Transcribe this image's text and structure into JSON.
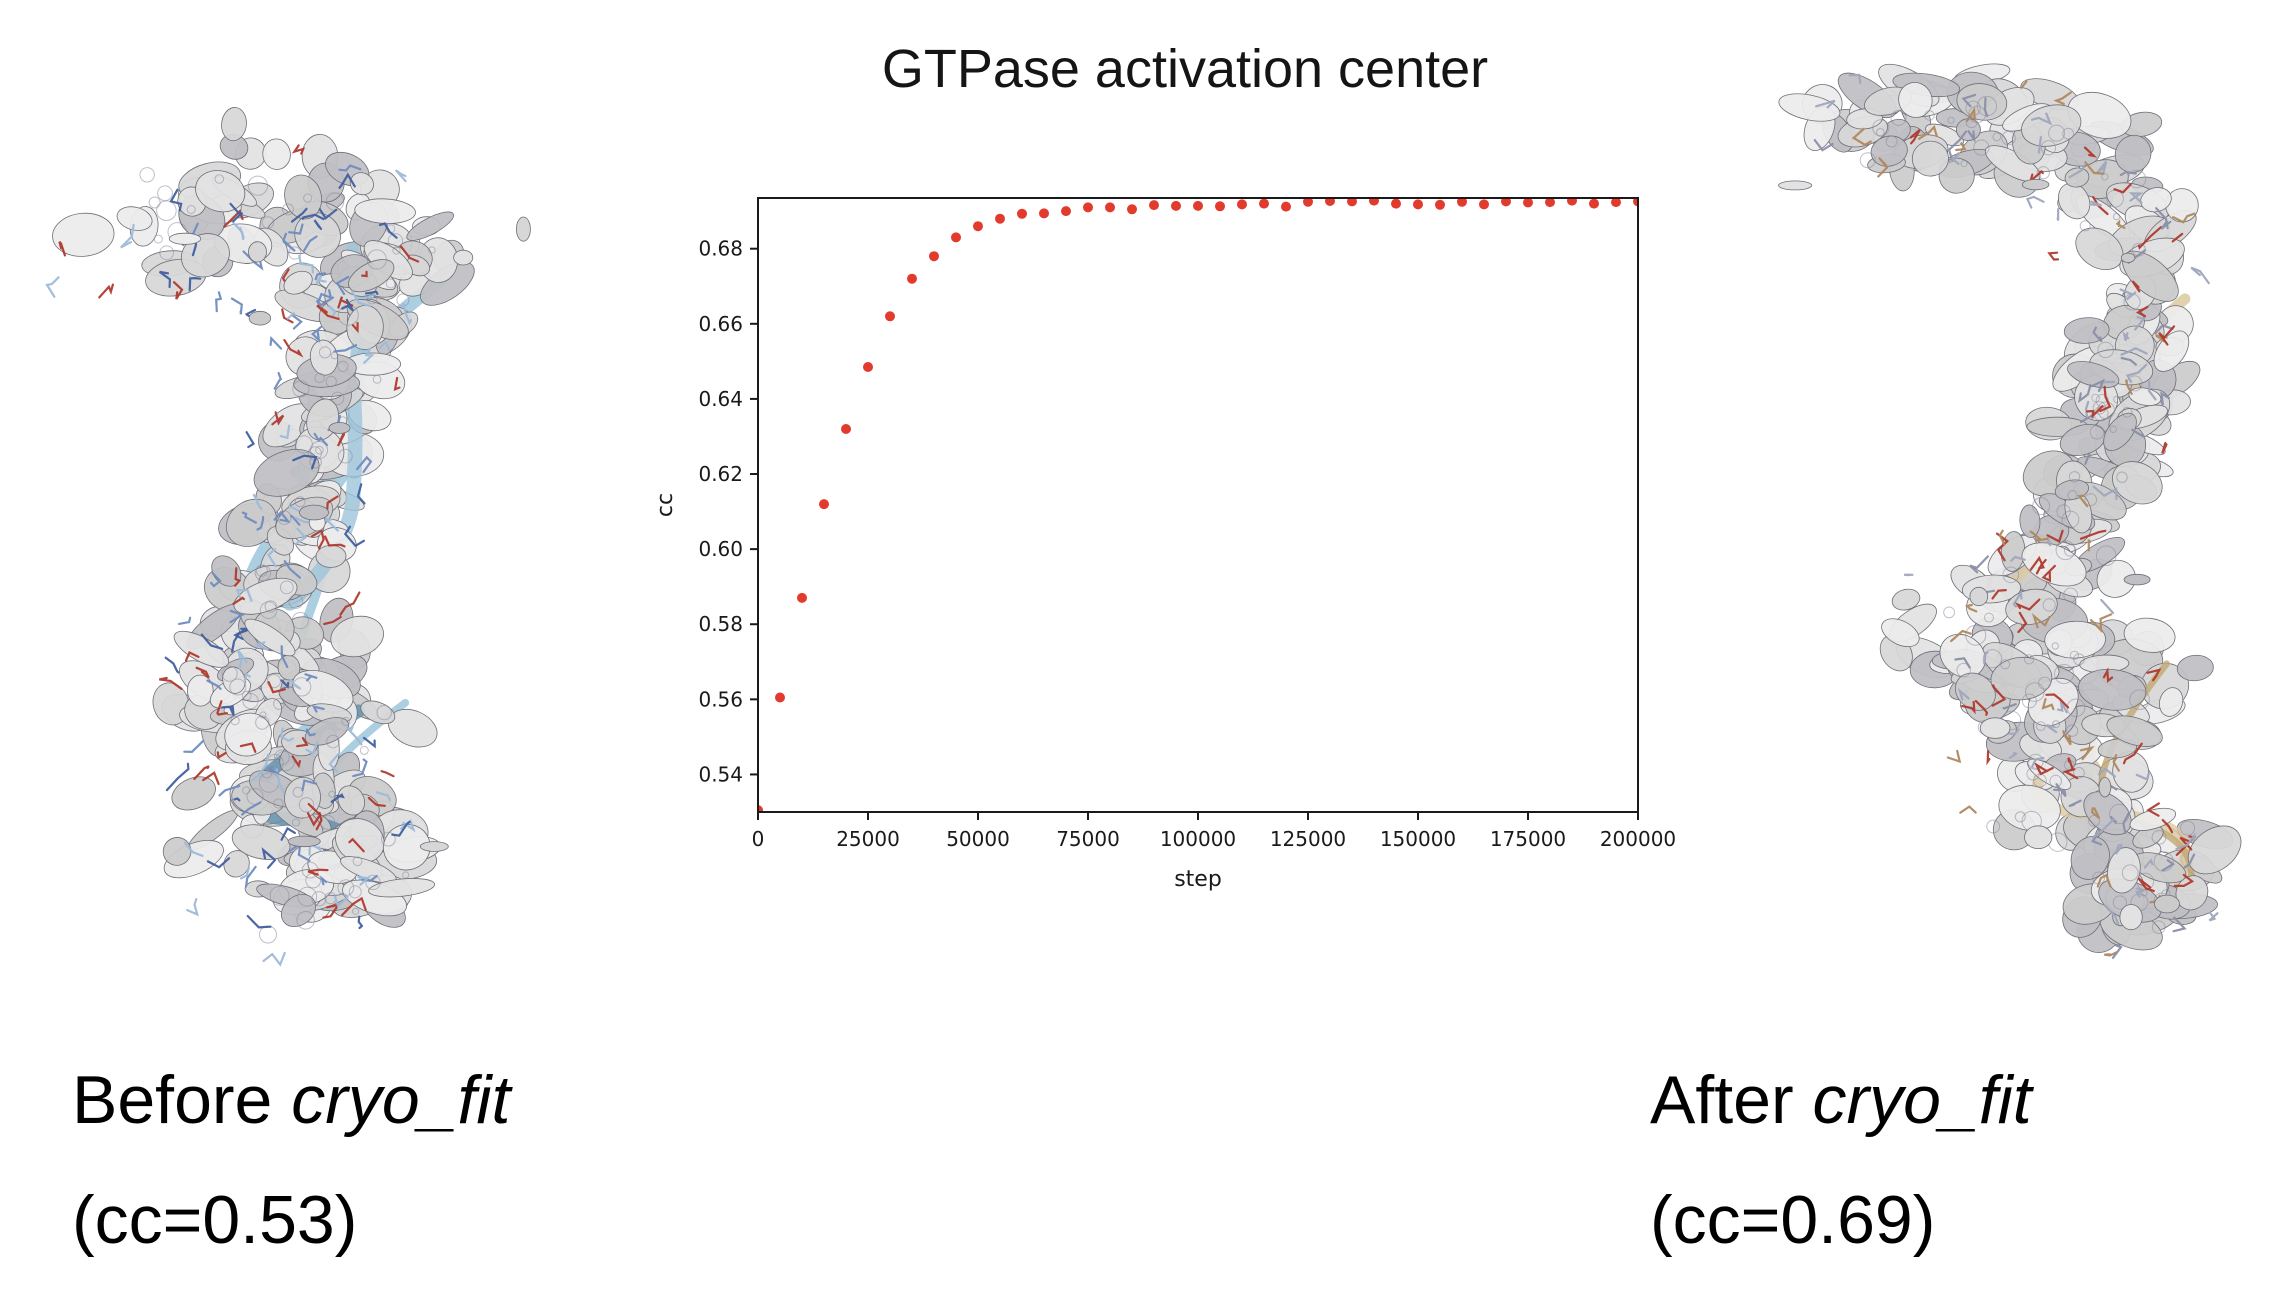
{
  "slide": {
    "background_color": "#ffffff",
    "title_color": "#151515"
  },
  "chart_data": {
    "type": "scatter",
    "title": "GTPase activation center",
    "xlabel": "step",
    "ylabel": "cc",
    "xlim": [
      0,
      200000
    ],
    "ylim": [
      0.53,
      0.6935
    ],
    "x_ticks": [
      0,
      25000,
      50000,
      75000,
      100000,
      125000,
      150000,
      175000,
      200000
    ],
    "y_ticks": [
      0.54,
      0.56,
      0.58,
      0.6,
      0.62,
      0.64,
      0.66,
      0.68
    ],
    "grid": false,
    "legend": "none",
    "marker_color": "#e23b2e",
    "series": [
      {
        "name": "cc",
        "x": [
          0,
          5000,
          10000,
          15000,
          20000,
          25000,
          30000,
          35000,
          40000,
          45000,
          50000,
          55000,
          60000,
          65000,
          70000,
          75000,
          80000,
          85000,
          90000,
          95000,
          100000,
          105000,
          110000,
          115000,
          120000,
          125000,
          130000,
          135000,
          140000,
          145000,
          150000,
          155000,
          160000,
          165000,
          170000,
          175000,
          180000,
          185000,
          190000,
          195000,
          200000
        ],
        "y": [
          0.5305,
          0.5605,
          0.587,
          0.612,
          0.632,
          0.6485,
          0.662,
          0.672,
          0.678,
          0.683,
          0.686,
          0.688,
          0.6893,
          0.6894,
          0.69,
          0.691,
          0.691,
          0.6905,
          0.6916,
          0.6914,
          0.6914,
          0.6913,
          0.6918,
          0.692,
          0.6912,
          0.6925,
          0.6927,
          0.6926,
          0.6928,
          0.692,
          0.6918,
          0.6917,
          0.6925,
          0.6918,
          0.6926,
          0.6923,
          0.6924,
          0.6928,
          0.692,
          0.6924,
          0.6926
        ]
      }
    ]
  },
  "captions": {
    "before": {
      "prefix": "Before ",
      "tool_name": "cryo_fit",
      "cc_value": "(cc=0.53)"
    },
    "after": {
      "prefix": "After ",
      "tool_name": "cryo_fit",
      "cc_value": "(cc=0.69)"
    }
  },
  "molecules": {
    "before": {
      "density_color": "#dcdcdc",
      "outline_color": "#6e6e78",
      "ribbon_color": "#9ec6dc",
      "ribbon_dark": "#5e8fae",
      "stick_colors": [
        "#41609f",
        "#6f8cc0",
        "#9dbbd9",
        "#b03a2e"
      ]
    },
    "after": {
      "density_color": "#dcdcdc",
      "outline_color": "#6e6e78",
      "ribbon_color": "#dbc9a1",
      "ribbon_dark": "#c2a873",
      "stick_colors": [
        "#8a8fa8",
        "#9fa6bd",
        "#b0895e",
        "#b03a2e"
      ]
    }
  }
}
